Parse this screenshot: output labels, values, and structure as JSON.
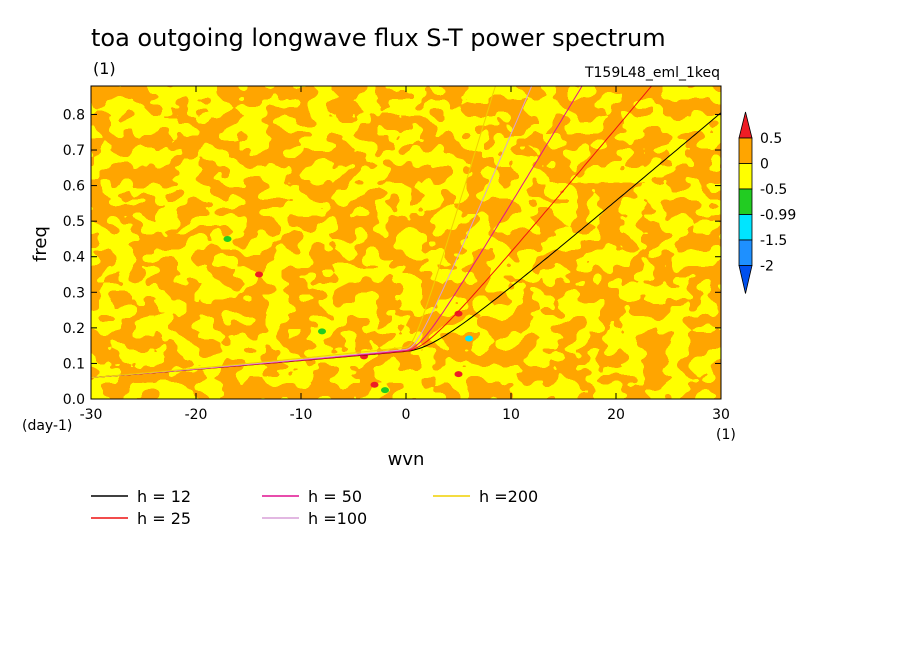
{
  "chart_data": {
    "type": "heatmap",
    "title": "toa outgoing longwave flux S-T power spectrum",
    "units_label": "(1)",
    "experiment": "T159L48_eml_1keq",
    "xlabel": "wvn",
    "ylabel": "freq",
    "x_units": "(1)",
    "y_units": "(day-1)",
    "xlim": [
      -30,
      30
    ],
    "ylim": [
      0,
      0.88
    ],
    "x_ticks": [
      -30,
      -20,
      -10,
      0,
      10,
      20,
      30
    ],
    "x_tick_labels": [
      "-30",
      "-20",
      "-10",
      "0",
      "10",
      "20",
      "30"
    ],
    "y_ticks": [
      0,
      0.1,
      0.2,
      0.3,
      0.4,
      0.5,
      0.6,
      0.7,
      0.8
    ],
    "y_tick_labels": [
      "0.0",
      "0.1",
      "0.2",
      "0.3",
      "0.4",
      "0.5",
      "0.6",
      "0.7",
      "0.8"
    ],
    "colorbar": {
      "levels": [
        "0.5",
        "0",
        "-0.5",
        "-0.99",
        "-1.5",
        "-2"
      ],
      "colors": [
        "#ee1c25",
        "#ffa500",
        "#ffff00",
        "#22cc22",
        "#00e5ff",
        "#1e90ff",
        "#0050ee"
      ]
    },
    "field_description_colors": {
      "dominant_a": "#ffa500",
      "dominant_b": "#ffff00"
    },
    "anomalies": [
      {
        "wvn": -8,
        "freq": 0.19,
        "color": "#22cc22"
      },
      {
        "wvn": 6,
        "freq": 0.17,
        "color": "#00e5ff"
      },
      {
        "wvn": -17,
        "freq": 0.45,
        "color": "#22cc22"
      },
      {
        "wvn": -14,
        "freq": 0.35,
        "color": "#ee1c25"
      },
      {
        "wvn": 5,
        "freq": 0.07,
        "color": "#ee1c25"
      },
      {
        "wvn": -2,
        "freq": 0.025,
        "color": "#22cc22"
      },
      {
        "wvn": -3,
        "freq": 0.04,
        "color": "#ee1c25"
      },
      {
        "wvn": -4,
        "freq": 0.12,
        "color": "#ee1c25"
      },
      {
        "wvn": 5,
        "freq": 0.24,
        "color": "#ee1c25"
      }
    ],
    "series": [
      {
        "name": "h = 12",
        "h": 12,
        "color": "#000000"
      },
      {
        "name": "h = 25",
        "h": 25,
        "color": "#ee1111"
      },
      {
        "name": "h = 50",
        "h": 50,
        "color": "#e01090"
      },
      {
        "name": "h =100",
        "h": 100,
        "color": "#d8a0d8"
      },
      {
        "name": "h =200",
        "h": 200,
        "color": "#f0d000"
      }
    ]
  }
}
